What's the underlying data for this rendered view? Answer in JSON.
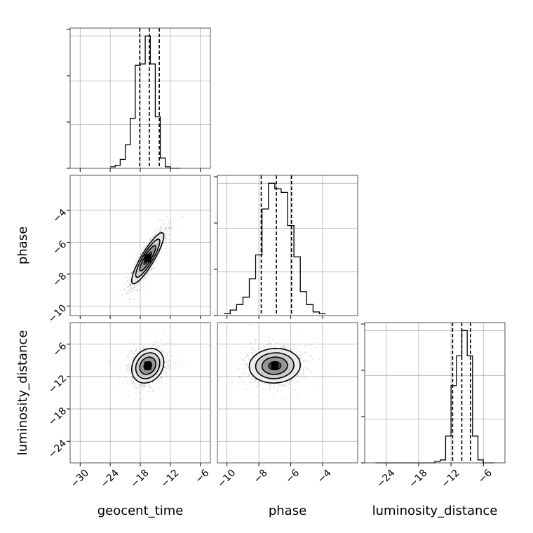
{
  "chart_data": {
    "type": "corner",
    "parameters": [
      "geocent_time",
      "phase",
      "luminosity_distance"
    ],
    "axis_labels": {
      "geocent_time": "geocent_time",
      "phase": "phase",
      "luminosity_distance": "luminosity_distance"
    },
    "ranges": {
      "geocent_time": [
        -32,
        -4
      ],
      "phase": [
        -10.6,
        -1.8
      ],
      "luminosity_distance": [
        -28,
        -2
      ]
    },
    "ticks": {
      "geocent_time": {
        "values": [
          -30,
          -24,
          -18,
          -12,
          -6
        ],
        "labels": [
          "−30",
          "−24",
          "−18",
          "−12",
          "−6"
        ]
      },
      "phase": {
        "values": [
          -10,
          -8,
          -6,
          -4
        ],
        "labels": [
          "−10",
          "−8",
          "−6",
          "−4"
        ]
      },
      "luminosity_distance": {
        "values": [
          -24,
          -18,
          -12,
          -6
        ],
        "labels": [
          "−24",
          "−18",
          "−12",
          "−6"
        ]
      }
    },
    "grid": true,
    "histograms": [
      {
        "parameter": "geocent_time",
        "bin_edges": [
          -24,
          -23,
          -22,
          -21,
          -20,
          -19,
          -18,
          -17,
          -16,
          -15,
          -14,
          -13,
          -12,
          -11,
          -10
        ],
        "counts": [
          1,
          2,
          6,
          16,
          34,
          70,
          71,
          90,
          71,
          35,
          7,
          1,
          0,
          0
        ],
        "quantiles": [
          -18.1,
          -16.2,
          -14.2
        ]
      },
      {
        "parameter": "phase",
        "bin_edges": [
          -10.2,
          -9.8,
          -9.4,
          -9.0,
          -8.6,
          -8.2,
          -7.8,
          -7.4,
          -7.0,
          -6.6,
          -6.2,
          -5.8,
          -5.4,
          -5.0,
          -4.6,
          -4.2,
          -3.8
        ],
        "counts": [
          1,
          3,
          6,
          10,
          20,
          33,
          58,
          72,
          69,
          67,
          49,
          32,
          13,
          6,
          2,
          1
        ],
        "quantiles": [
          -7.85,
          -6.9,
          -5.95
        ]
      },
      {
        "parameter": "luminosity_distance",
        "bin_edges": [
          -26,
          -25,
          -24,
          -23,
          -22,
          -21,
          -20,
          -19,
          -18,
          -17,
          -16,
          -15,
          -14,
          -13,
          -12,
          -11,
          -10,
          -9,
          -8,
          -7,
          -6,
          -5,
          -4
        ],
        "counts": [
          0,
          0,
          0,
          0,
          0,
          0,
          0,
          0,
          0,
          0,
          0,
          1,
          2,
          18,
          52,
          72,
          89,
          72,
          18,
          2,
          0,
          0
        ],
        "quantiles": [
          -11.7,
          -10.0,
          -8.4
        ]
      }
    ],
    "contours": [
      {
        "x": "geocent_time",
        "y": "phase",
        "center": [
          -16.5,
          -7.0
        ],
        "sx": 1.6,
        "sy": 0.8,
        "corr": 0.88
      },
      {
        "x": "geocent_time",
        "y": "luminosity_distance",
        "center": [
          -16.5,
          -10.0
        ],
        "sx": 1.6,
        "sy": 1.6,
        "corr": 0.2
      },
      {
        "x": "phase",
        "y": "luminosity_distance",
        "center": [
          -7.0,
          -10.0
        ],
        "sx": 0.8,
        "sy": 1.6,
        "corr": 0.05
      }
    ]
  }
}
